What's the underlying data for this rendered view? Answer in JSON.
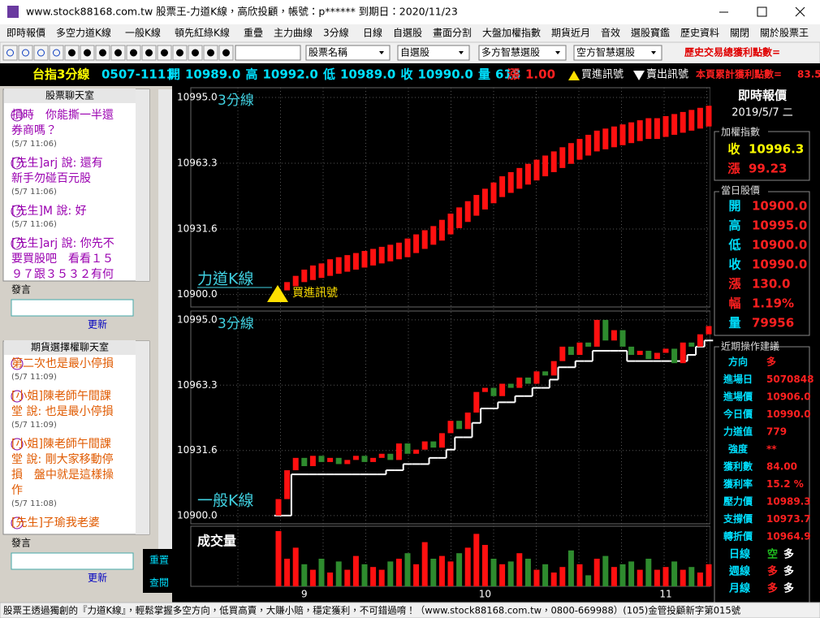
{
  "window": {
    "title": "www.stock88168.com.tw 股票王-力道K線，高欣投顧，帳號：p****** 到期日：2020/11/23",
    "menu": [
      "即時報價",
      "多空力道K線",
      "一般K線",
      "頓先紅綠K線",
      "重疊",
      "主力曲線",
      "3分線",
      "日線",
      "自選股",
      "畫面分割",
      "大盤加權指數",
      "期貨近月",
      "音效",
      "選股寶鑑",
      "歷史資料",
      "關閉",
      "關於股票王"
    ]
  },
  "toolbar": {
    "dropdowns": [
      "股票名稱",
      "自選股",
      "多方智慧選股",
      "空方智慧選股"
    ],
    "total_profit": "歷史交易總獲利點數="
  },
  "quote_bar": {
    "symbol": "台指3分線",
    "time": "0507-1111",
    "fields": [
      {
        "label": "開",
        "value": "10989.0"
      },
      {
        "label": "高",
        "value": "10992.0"
      },
      {
        "label": "低",
        "value": "10989.0"
      },
      {
        "label": "收",
        "value": "10990.0"
      },
      {
        "label": "量",
        "value": "618"
      }
    ],
    "change_label": "漲",
    "change": "1.00",
    "buy_signal": "買進訊號",
    "sell_signal": "賣出訊號",
    "page_profit": "本頁累計獲利點數=",
    "page_profit_value": "83.50"
  },
  "chat_stock": {
    "title": "股票聊天室",
    "messages": [
      {
        "lines": [
          "損時　你能撕一半還",
          "券商嗎？"
        ],
        "time": "(5/7 11:06)"
      },
      {
        "lines": [
          "[先生]arj 說: 還有",
          "新手勿碰百元股"
        ],
        "time": "(5/7 11:06)"
      },
      {
        "lines": [
          "[先生]M 說: 好"
        ],
        "time": "(5/7 11:06)"
      },
      {
        "lines": [
          "[先生]arj 說: 你先不",
          "要買股吧　看看１５",
          "９７跟３５３２有何"
        ],
        "time": null
      }
    ],
    "input_label": "發言",
    "refresh": "更新"
  },
  "chat_futures": {
    "title": "期貨選擇權聊天室",
    "messages": [
      {
        "lines": [
          "第二次也是最小停損"
        ],
        "time": "(5/7 11:09)"
      },
      {
        "lines": [
          "[小姐]陳老師午間課",
          "堂 說: 也是最小停損"
        ],
        "time": "(5/7 11:09)"
      },
      {
        "lines": [
          "[小姐]陳老師午間課",
          "堂 說: 剛大家移動停",
          "損　盤中就是這樣操",
          "作"
        ],
        "time": "(5/7 11:08)"
      },
      {
        "lines": [
          "[先生]子瑜我老婆"
        ],
        "time": null
      }
    ],
    "input_label": "發言",
    "refresh": "更新",
    "reset": "重置",
    "query": "查閱"
  },
  "chart_data": [
    {
      "type": "floating-bar",
      "title": "3分線",
      "name": "力道K線",
      "annotation": "買進訊號",
      "color": "#ff1010",
      "lows": [
        10900,
        10902,
        10904,
        10906,
        10907,
        10908,
        10909,
        10910,
        10911,
        10912,
        10913,
        10914,
        10915,
        10916,
        10917,
        10918,
        10920,
        10922,
        10924,
        10926,
        10929,
        10932,
        10935,
        10938,
        10941,
        10944,
        10947,
        10949,
        10951,
        10953,
        10955,
        10957,
        10959,
        10961,
        10963,
        10965,
        10967,
        10969,
        10970,
        10971,
        10972,
        10973,
        10974,
        10975,
        10975,
        10976,
        10977,
        10978,
        10979,
        10980,
        10981
      ],
      "highs": [
        10902,
        10906,
        10909,
        10912,
        10914,
        10915,
        10917,
        10918,
        10919,
        10920,
        10921,
        10922,
        10923,
        10924,
        10925,
        10927,
        10929,
        10931,
        10933,
        10936,
        10939,
        10942,
        10945,
        10948,
        10951,
        10954,
        10957,
        10959,
        10961,
        10963,
        10965,
        10967,
        10969,
        10971,
        10973,
        10975,
        10977,
        10979,
        10980,
        10981,
        10982,
        10983,
        10984,
        10985,
        10985,
        10986,
        10987,
        10988,
        10989,
        10990,
        10991
      ],
      "ylim": [
        10894,
        10999.7
      ],
      "yticks": [
        {
          "value": 10995,
          "label": "10995.0"
        },
        {
          "value": 10963.3,
          "label": "10963.3"
        },
        {
          "value": 10931.6,
          "label": "10931.6"
        },
        {
          "value": 10900,
          "label": "10900.0"
        }
      ],
      "grid": true
    },
    {
      "type": "candlestick",
      "title": "3分線",
      "name": "一般K線",
      "up_color": "#ff1010",
      "down_color": "#2e8b2e",
      "line_color": "#ffffff",
      "open": [
        10900,
        10908,
        10922,
        10928,
        10924,
        10929,
        10926,
        10928,
        10925,
        10927,
        10929,
        10926,
        10928,
        10930,
        10927,
        10935,
        10930,
        10932,
        10936,
        10933,
        10940,
        10946,
        10942,
        10950,
        10960,
        10962,
        10958,
        10964,
        10962,
        10967,
        10964,
        10970,
        10968,
        10975,
        10982,
        10978,
        10984,
        10982,
        10995,
        10985,
        10990,
        10982,
        10978,
        10980,
        10976,
        10979,
        10981,
        10974,
        10984,
        10982,
        10988
      ],
      "close": [
        10908,
        10922,
        10928,
        10924,
        10929,
        10926,
        10928,
        10925,
        10927,
        10929,
        10926,
        10928,
        10930,
        10927,
        10935,
        10930,
        10932,
        10936,
        10933,
        10940,
        10946,
        10942,
        10950,
        10960,
        10962,
        10958,
        10964,
        10962,
        10967,
        10964,
        10970,
        10968,
        10975,
        10982,
        10978,
        10984,
        10982,
        10995,
        10985,
        10990,
        10982,
        10978,
        10980,
        10976,
        10979,
        10981,
        10974,
        10984,
        10982,
        10988,
        10992
      ],
      "line": [
        10900,
        10900,
        10920,
        10920,
        10920,
        10920,
        10920,
        10920,
        10920,
        10920,
        10920,
        10920,
        10920,
        10922,
        10922,
        10925,
        10925,
        10925,
        10928,
        10928,
        10932,
        10938,
        10938,
        10945,
        10952,
        10952,
        10955,
        10955,
        10958,
        10958,
        10962,
        10962,
        10966,
        10972,
        10972,
        10975,
        10975,
        10980,
        10980,
        10980,
        10980,
        10975,
        10975,
        10975,
        10975,
        10975,
        10975,
        10975,
        10978,
        10982,
        10985
      ],
      "ylim": [
        10896,
        10999.3
      ],
      "yticks": [
        {
          "value": 10995,
          "label": "10995.0"
        },
        {
          "value": 10963.3,
          "label": "10963.3"
        },
        {
          "value": 10931.6,
          "label": "10931.6"
        },
        {
          "value": 10900,
          "label": "10900.0"
        }
      ],
      "grid": true
    },
    {
      "type": "bar",
      "title": "成交量",
      "categories": [
        null,
        null,
        null,
        "9",
        null,
        null,
        null,
        null,
        null,
        null,
        null,
        null,
        null,
        null,
        null,
        null,
        null,
        null,
        null,
        null,
        null,
        null,
        null,
        null,
        "10",
        null,
        null,
        null,
        null,
        null,
        null,
        null,
        null,
        null,
        null,
        null,
        null,
        null,
        null,
        null,
        null,
        null,
        null,
        null,
        null,
        "11",
        null,
        null,
        null,
        null,
        null
      ],
      "values": [
        1000,
        500,
        700,
        400,
        300,
        500,
        250,
        450,
        300,
        550,
        400,
        350,
        300,
        450,
        500,
        600,
        400,
        800,
        500,
        550,
        450,
        600,
        700,
        950,
        750,
        500,
        400,
        450,
        600,
        500,
        300,
        400,
        250,
        350,
        650,
        400,
        200,
        500,
        550,
        350,
        400,
        450,
        300,
        500,
        300,
        350,
        450,
        300,
        350,
        250,
        400
      ],
      "ylim": [
        0,
        1000
      ]
    }
  ],
  "side_panel": {
    "title": "即時報價",
    "date": "2019/5/7 二",
    "index_box": {
      "title": "加權指數",
      "rows": [
        {
          "label": "收",
          "value": "10996.3"
        },
        {
          "label": "漲",
          "value": "99.23"
        }
      ]
    },
    "day_box": {
      "title": "當日股價",
      "rows": [
        {
          "label": "開",
          "value": "10900.0"
        },
        {
          "label": "高",
          "value": "10995.0"
        },
        {
          "label": "低",
          "value": "10900.0"
        },
        {
          "label": "收",
          "value": "10990.0"
        },
        {
          "label": "漲",
          "value": "130.0"
        },
        {
          "label": "幅",
          "value": "1.19%"
        },
        {
          "label": "量",
          "value": "79956"
        }
      ]
    },
    "advice_box": {
      "title": "近期操作建議",
      "rows": [
        {
          "label": "方向",
          "value": "多"
        },
        {
          "label": "進場日",
          "value": "5070848"
        },
        {
          "label": "進場價",
          "value": "10906.0"
        },
        {
          "label": "今日價",
          "value": "10990.0"
        },
        {
          "label": "力道值",
          "value": "779"
        },
        {
          "label": "強度",
          "value": "**"
        },
        {
          "label": "獲利數",
          "value": "84.00"
        },
        {
          "label": "獲利率",
          "value": "15.2 %"
        },
        {
          "label": "壓力價",
          "value": "10989.3"
        },
        {
          "label": "支撐價",
          "value": "10973.7"
        },
        {
          "label": "轉折價",
          "value": "10964.9"
        }
      ]
    },
    "trend_rows": [
      {
        "label": "日線",
        "values": [
          "空",
          "多"
        ]
      },
      {
        "label": "週線",
        "values": [
          "多",
          "多"
        ]
      },
      {
        "label": "月線",
        "values": [
          "多",
          "多"
        ]
      }
    ]
  },
  "status_bar": "股票王透過獨創的『力道K線』，輕鬆掌握多空方向，低買高賣，大賺小賠，穩定獲利，不可錯過唷！（www.stock88168.com.tw，0800-669988）(105)金管投顧新字第015號"
}
